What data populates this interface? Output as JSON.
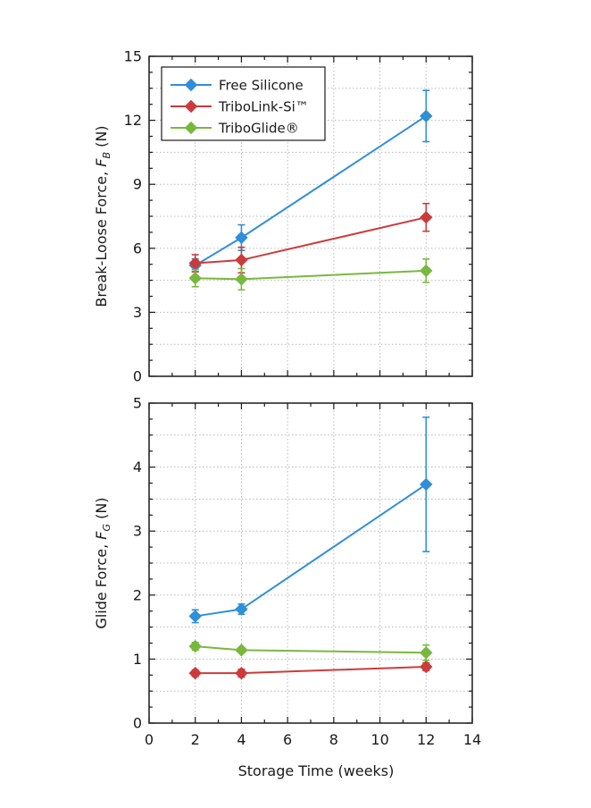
{
  "chart_data": {
    "type": "line",
    "xlabel": "Storage Time (weeks)",
    "xlim": [
      0,
      14
    ],
    "xticks": [
      "0",
      "2",
      "4",
      "6",
      "8",
      "10",
      "12",
      "14"
    ],
    "legend": {
      "placement": "top-left",
      "entries": [
        "Free Silicone",
        "TriboLink-Si™",
        "TriboGlide®"
      ]
    },
    "colors": {
      "free_silicone": "#2f8fd8",
      "tribolink": "#cc3b3b",
      "triboglide": "#79b83f"
    },
    "grid": true,
    "panels": [
      {
        "ylabel_prefix": "Break-Loose Force, ",
        "ylabel_symbol": "F",
        "ylabel_sub": "B",
        "ylabel_suffix": " (N)",
        "ylim": [
          0,
          15
        ],
        "yticks": [
          "0",
          "3",
          "6",
          "9",
          "12",
          "15"
        ],
        "series": [
          {
            "name": "Free Silicone",
            "color": "#2f8fd8",
            "x": [
              2,
              4,
              12
            ],
            "y": [
              5.2,
              6.5,
              12.2
            ],
            "err": [
              0.3,
              0.6,
              1.2
            ]
          },
          {
            "name": "TriboLink-Si™",
            "color": "#cc3b3b",
            "x": [
              2,
              4,
              12
            ],
            "y": [
              5.3,
              5.45,
              7.45
            ],
            "err": [
              0.4,
              0.6,
              0.65
            ]
          },
          {
            "name": "TriboGlide®",
            "color": "#79b83f",
            "x": [
              2,
              4,
              12
            ],
            "y": [
              4.6,
              4.55,
              4.95
            ],
            "err": [
              0.4,
              0.5,
              0.55
            ]
          }
        ]
      },
      {
        "ylabel_prefix": "Glide Force, ",
        "ylabel_symbol": "F",
        "ylabel_sub": "G",
        "ylabel_suffix": " (N)",
        "ylim": [
          0,
          5
        ],
        "yticks": [
          "0",
          "1",
          "2",
          "3",
          "4",
          "5"
        ],
        "series": [
          {
            "name": "Free Silicone",
            "color": "#2f8fd8",
            "x": [
              2,
              4,
              12
            ],
            "y": [
              1.67,
              1.78,
              3.73
            ],
            "err": [
              0.1,
              0.08,
              1.05
            ]
          },
          {
            "name": "TriboLink-Si™",
            "color": "#cc3b3b",
            "x": [
              2,
              4,
              12
            ],
            "y": [
              0.78,
              0.78,
              0.88
            ],
            "err": [
              0.05,
              0.06,
              0.06
            ]
          },
          {
            "name": "TriboGlide®",
            "color": "#79b83f",
            "x": [
              2,
              4,
              12
            ],
            "y": [
              1.2,
              1.14,
              1.1
            ],
            "err": [
              0.06,
              0.04,
              0.12
            ]
          }
        ]
      }
    ]
  }
}
